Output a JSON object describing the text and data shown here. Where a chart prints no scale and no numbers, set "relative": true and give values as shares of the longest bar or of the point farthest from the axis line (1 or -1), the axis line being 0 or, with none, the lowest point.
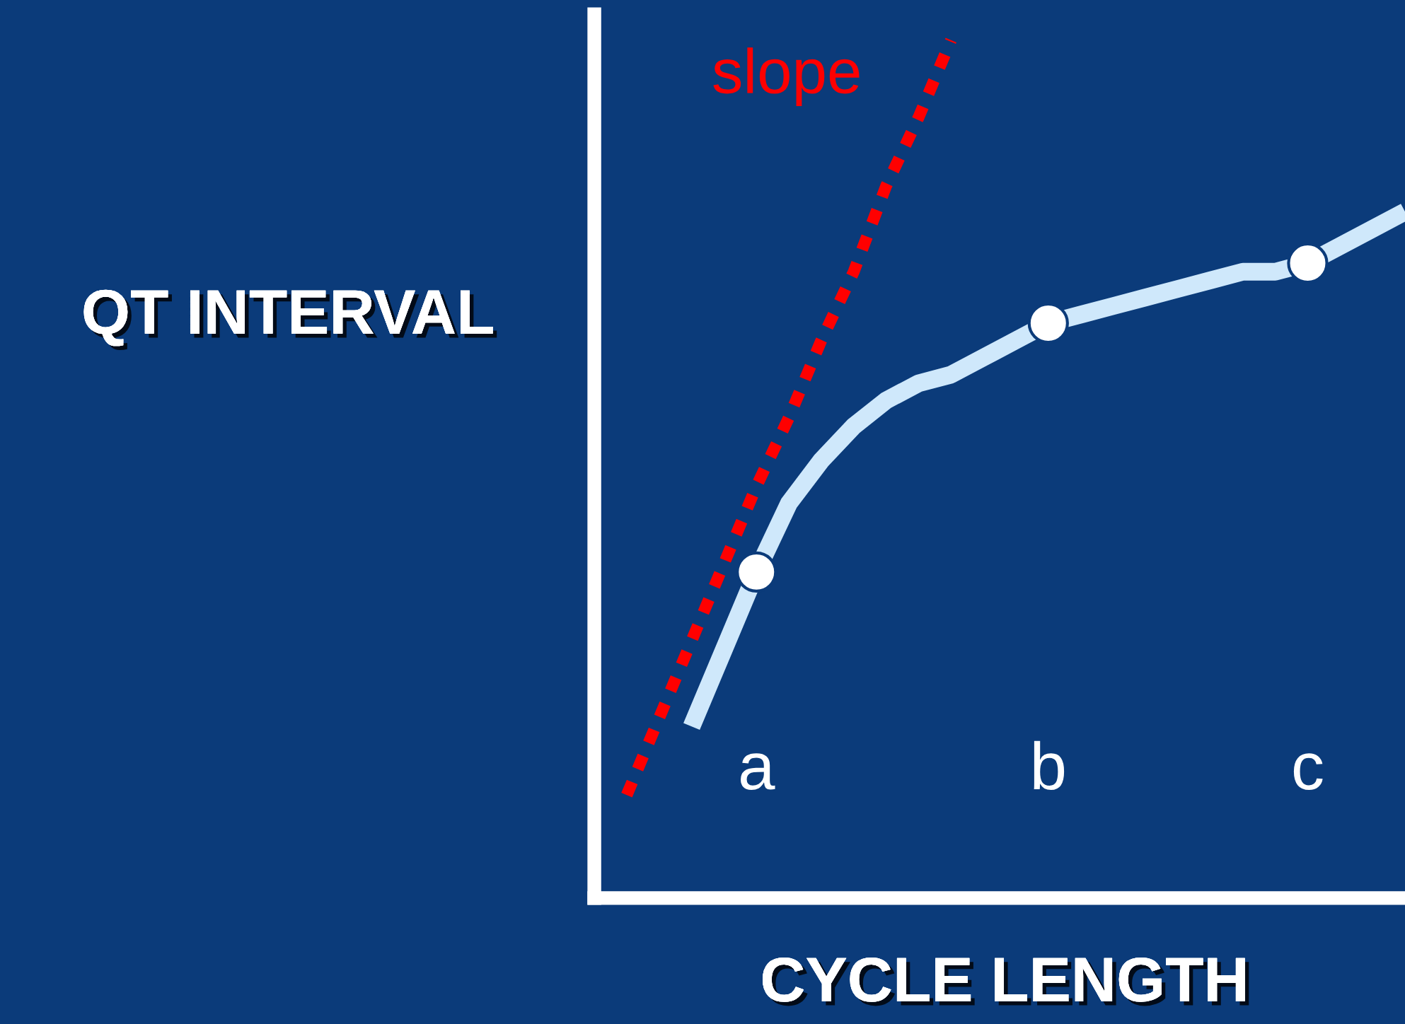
{
  "chart_data": {
    "type": "line",
    "relative": true,
    "xlabel": "CYCLE LENGTH",
    "ylabel": "QT INTERVAL",
    "annotations": [
      "slope"
    ],
    "categories": [
      null,
      null,
      null,
      null,
      null,
      "a",
      null,
      null,
      null,
      null,
      null,
      null,
      null,
      null,
      "b",
      null,
      null,
      null,
      null,
      null,
      null,
      null,
      "c",
      null,
      null,
      null
    ],
    "grid": false,
    "legend": false,
    "series": [
      {
        "type": "line",
        "color": "#cfe8fb",
        "values": [
          null,
          null,
          null,
          0.2,
          0.29,
          0.38,
          0.46,
          0.51,
          0.55,
          0.58,
          0.6,
          0.61,
          0.63,
          0.65,
          0.67,
          0.68,
          0.69,
          0.7,
          0.71,
          0.72,
          0.73,
          0.73,
          0.74,
          0.76,
          0.78,
          0.8
        ]
      },
      {
        "type": "line",
        "color": "#ff0000",
        "line_style": "dotted",
        "values": [
          null,
          0.12,
          0.21,
          0.3,
          0.39,
          0.48,
          0.56,
          0.65,
          0.73,
          0.83,
          0.91,
          1.0,
          null,
          null,
          null,
          null,
          null,
          null,
          null,
          null,
          null,
          null,
          null,
          null,
          null,
          null
        ]
      },
      {
        "type": "scatter",
        "color": "#ffffff",
        "marker": "circle",
        "values": [
          null,
          null,
          null,
          null,
          null,
          0.38,
          null,
          null,
          null,
          null,
          null,
          null,
          null,
          null,
          0.67,
          null,
          null,
          null,
          null,
          null,
          null,
          null,
          0.74,
          null,
          null,
          null
        ]
      }
    ]
  }
}
